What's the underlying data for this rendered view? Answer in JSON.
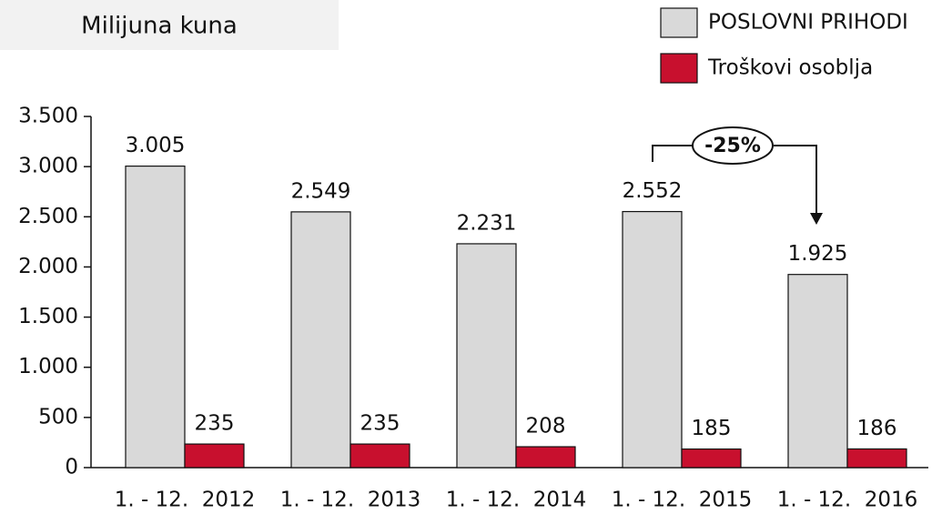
{
  "chart_data": {
    "type": "bar",
    "title": "Milijuna kuna",
    "categories": [
      "1. - 12.  2012",
      "1. - 12.  2013",
      "1. - 12.  2014",
      "1. - 12.  2015",
      "1. - 12.  2016"
    ],
    "series": [
      {
        "name": "POSLOVNI PRIHODI",
        "color": "#d9d9d9",
        "values": [
          3005,
          2549,
          2231,
          2552,
          1925
        ],
        "value_labels": [
          "3.005",
          "2.549",
          "2.231",
          "2.552",
          "1.925"
        ]
      },
      {
        "name": "Troškovi osoblja",
        "color": "#c8102e",
        "values": [
          235,
          235,
          208,
          185,
          186
        ]
      }
    ],
    "ylim": [
      0,
      3500
    ],
    "yticks": [
      0,
      500,
      {
        "value": 1000,
        "label": "1.000"
      },
      {
        "value": 1500,
        "label": "1.500"
      },
      {
        "value": 2000,
        "label": "2.000"
      },
      {
        "value": 2500,
        "label": "2.500"
      },
      {
        "value": 3000,
        "label": "3.000"
      },
      {
        "value": 3500,
        "label": "3.500"
      }
    ],
    "annotation": "-25%",
    "legend": "top-right"
  }
}
